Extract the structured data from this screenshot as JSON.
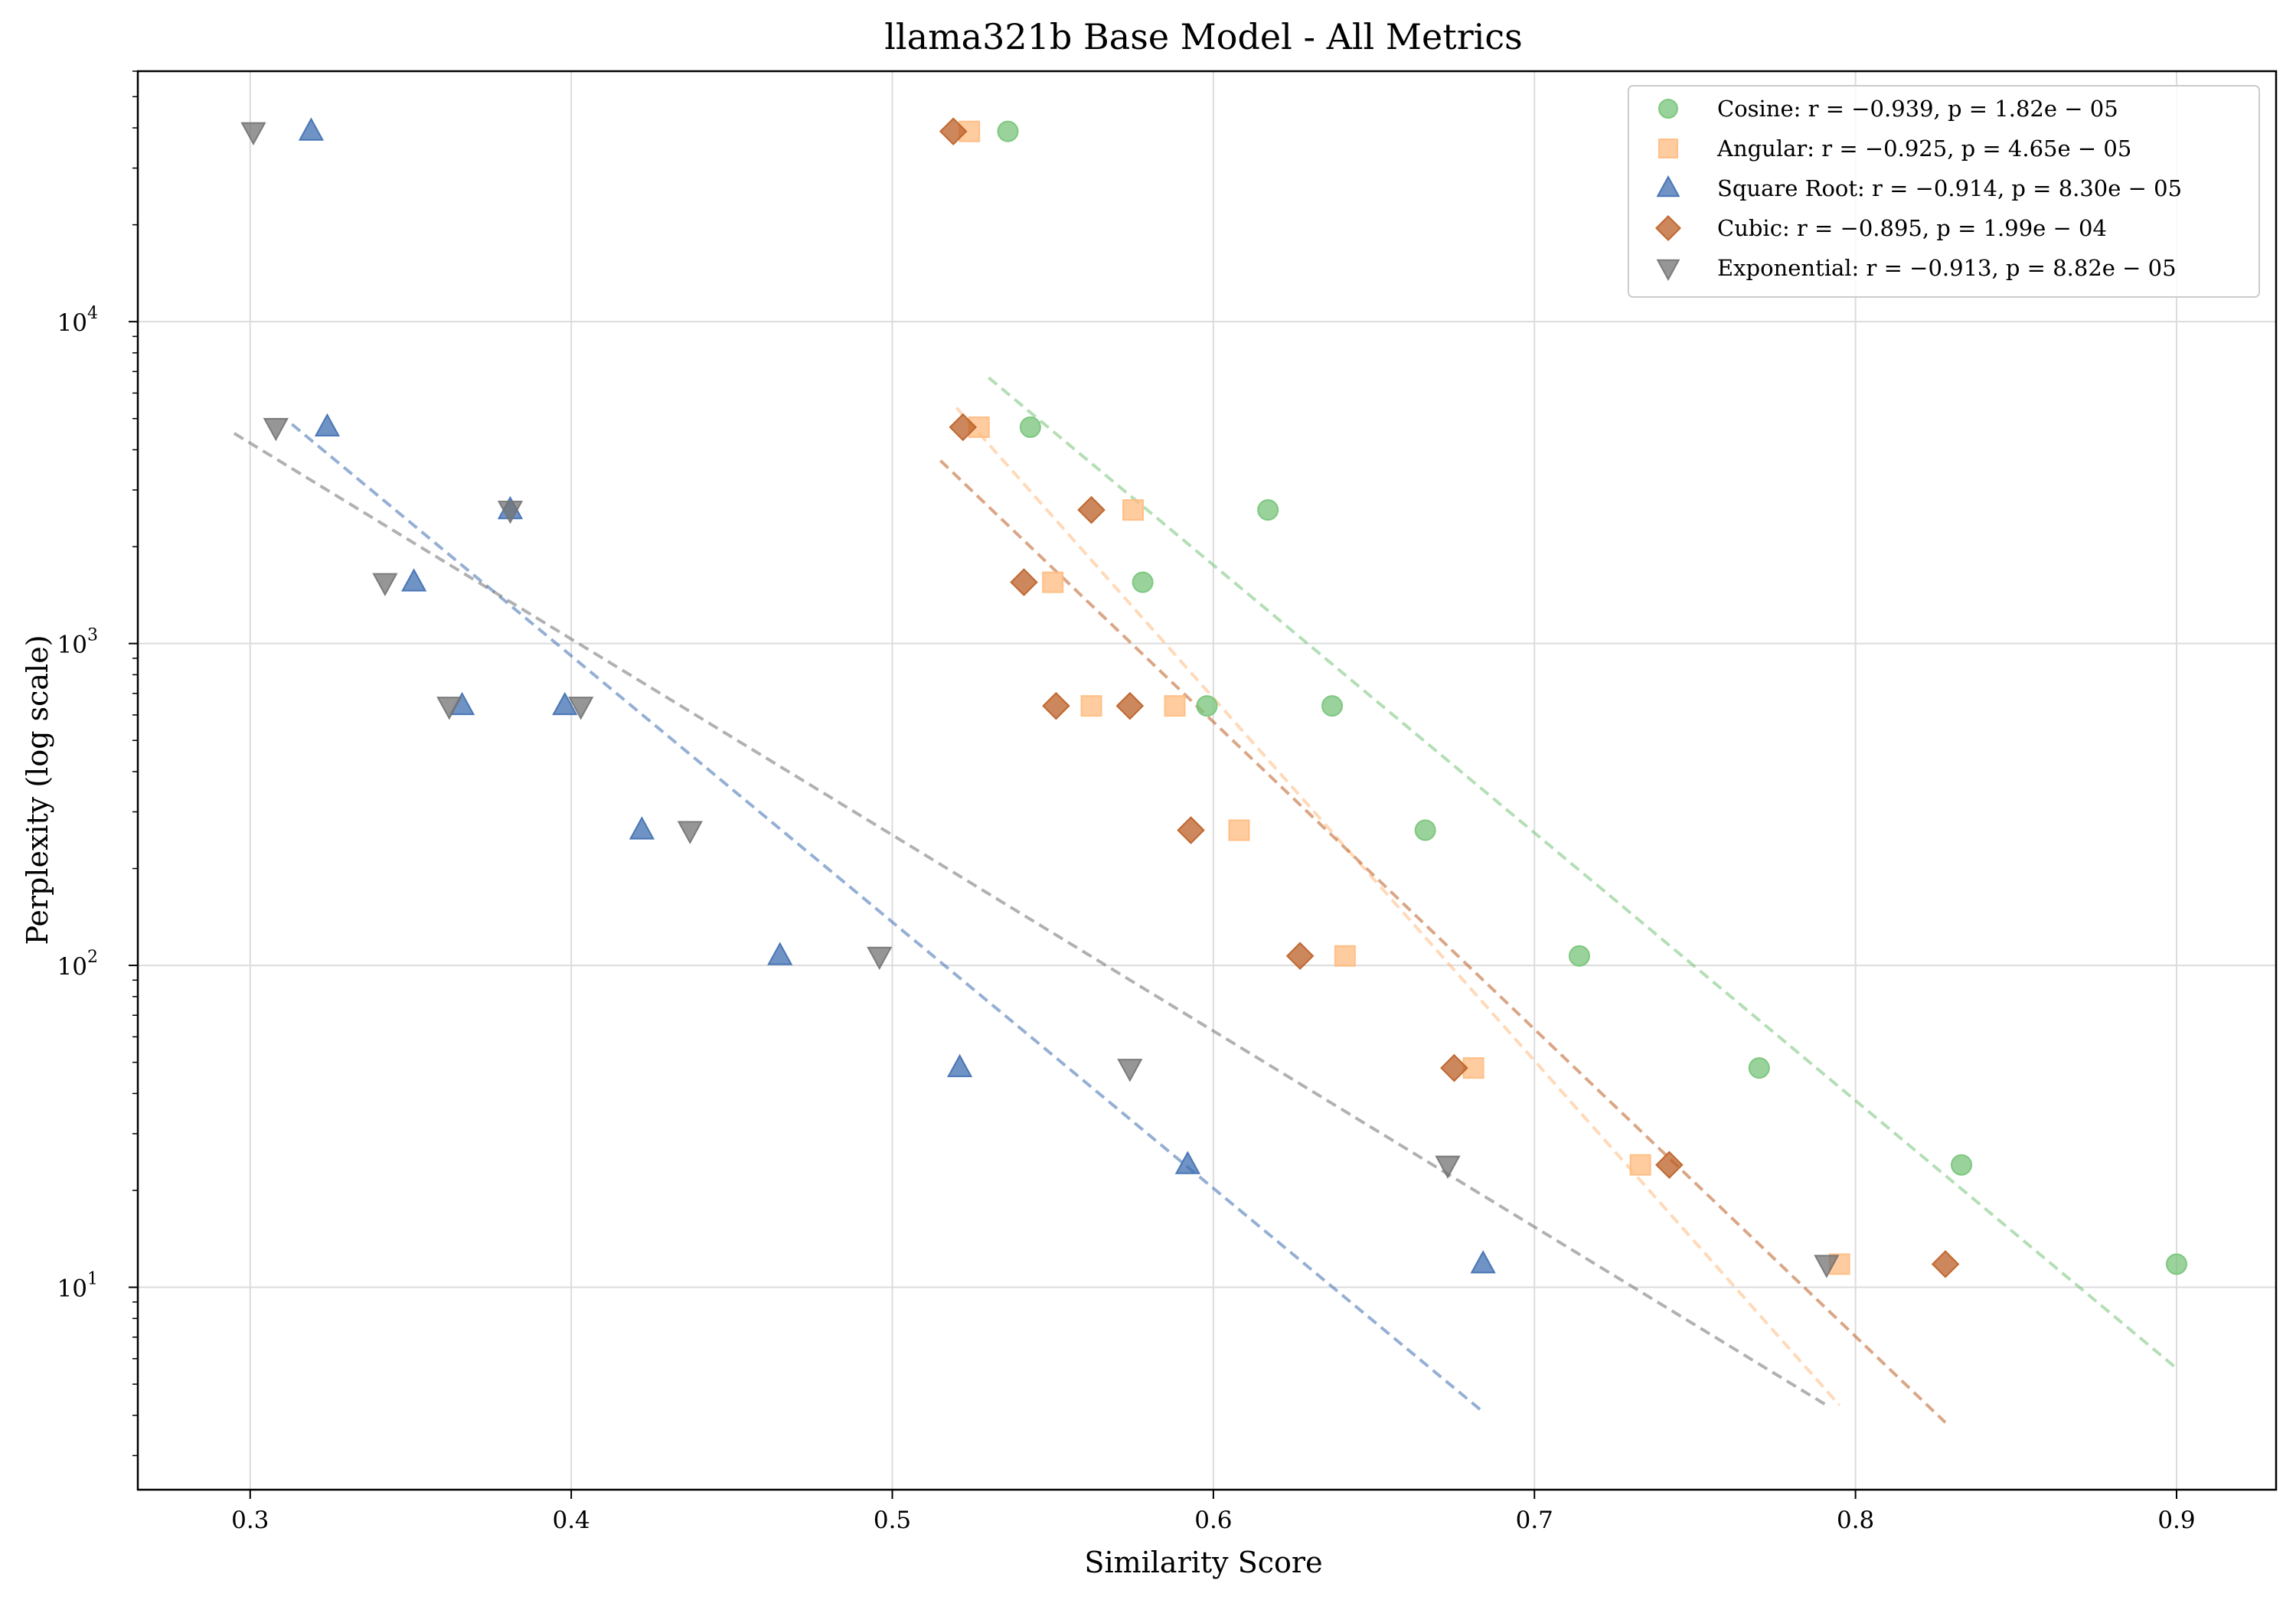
{
  "chart_data": {
    "type": "scatter",
    "title": "llama321b Base Model - All Metrics",
    "xlabel": "Similarity Score",
    "ylabel": "Perplexity (log scale)",
    "xlim": [
      0.265,
      0.931
    ],
    "ylim": [
      2.35,
      60000
    ],
    "y_scale": "log",
    "grid": true,
    "legend_position": "top-right",
    "x_ticks": [
      {
        "value": 0.3,
        "label": "0.3"
      },
      {
        "value": 0.4,
        "label": "0.4"
      },
      {
        "value": 0.5,
        "label": "0.5"
      },
      {
        "value": 0.6,
        "label": "0.6"
      },
      {
        "value": 0.7,
        "label": "0.7"
      },
      {
        "value": 0.8,
        "label": "0.8"
      },
      {
        "value": 0.9,
        "label": "0.9"
      }
    ],
    "y_ticks": [
      {
        "value": 10,
        "base": "10",
        "exp": "1"
      },
      {
        "value": 100,
        "base": "10",
        "exp": "2"
      },
      {
        "value": 1000,
        "base": "10",
        "exp": "3"
      },
      {
        "value": 10000,
        "base": "10",
        "exp": "4"
      }
    ],
    "series": [
      {
        "name": "Cosine",
        "legend_label": "Cosine: r = −0.939, p = 1.82e − 05",
        "r": "−0.939",
        "p": "1.82e − 05",
        "marker": "circle",
        "color": "#77c479",
        "x": [
          0.536,
          0.543,
          0.617,
          0.578,
          0.637,
          0.598,
          0.666,
          0.714,
          0.77,
          0.833,
          0.9
        ],
        "y": [
          39000,
          4700,
          2600,
          1550,
          640,
          640,
          263,
          107,
          48,
          24,
          11.8
        ],
        "fit": {
          "x": [
            0.53,
            0.9
          ],
          "y": [
            6700,
            5.6
          ]
        }
      },
      {
        "name": "Angular",
        "legend_label": "Angular: r = −0.925, p = 4.65e − 05",
        "r": "−0.925",
        "p": "4.65e − 05",
        "marker": "square",
        "color": "#ffbb7f",
        "x": [
          0.524,
          0.527,
          0.575,
          0.55,
          0.588,
          0.562,
          0.608,
          0.641,
          0.681,
          0.733,
          0.795
        ],
        "y": [
          39000,
          4700,
          2600,
          1550,
          640,
          640,
          263,
          107,
          48,
          24,
          11.8
        ],
        "fit": {
          "x": [
            0.52,
            0.795
          ],
          "y": [
            5400,
            4.3
          ]
        }
      },
      {
        "name": "Square Root",
        "legend_label": "Square Root: r = −0.914, p = 8.30e − 05",
        "r": "−0.914",
        "p": "8.30e − 05",
        "marker": "triangle-up",
        "color": "#3f6fb1",
        "x": [
          0.319,
          0.324,
          0.381,
          0.351,
          0.366,
          0.398,
          0.422,
          0.465,
          0.521,
          0.592,
          0.684
        ],
        "y": [
          39000,
          4700,
          2600,
          1550,
          640,
          640,
          263,
          107,
          48,
          24,
          11.8
        ],
        "fit": {
          "x": [
            0.313,
            0.684
          ],
          "y": [
            4800,
            4.1
          ]
        }
      },
      {
        "name": "Cubic",
        "legend_label": "Cubic: r = −0.895, p = 1.99e − 04",
        "r": "−0.895",
        "p": "1.99e − 04",
        "marker": "diamond",
        "color": "#bc5f25",
        "x": [
          0.519,
          0.522,
          0.562,
          0.541,
          0.551,
          0.574,
          0.593,
          0.627,
          0.675,
          0.742,
          0.828
        ],
        "y": [
          39000,
          4700,
          2600,
          1550,
          640,
          640,
          263,
          107,
          48,
          24,
          11.8
        ],
        "fit": {
          "x": [
            0.515,
            0.828
          ],
          "y": [
            3700,
            3.8
          ]
        }
      },
      {
        "name": "Exponential",
        "legend_label": "Exponential: r = −0.913, p = 8.82e − 05",
        "r": "−0.913",
        "p": "8.82e − 05",
        "marker": "triangle-down",
        "color": "#737373",
        "x": [
          0.301,
          0.308,
          0.381,
          0.342,
          0.362,
          0.403,
          0.437,
          0.496,
          0.574,
          0.673,
          0.791
        ],
        "y": [
          39000,
          4700,
          2600,
          1550,
          640,
          640,
          263,
          107,
          48,
          24,
          11.8
        ],
        "fit": {
          "x": [
            0.295,
            0.791
          ],
          "y": [
            4500,
            4.3
          ]
        }
      }
    ]
  }
}
